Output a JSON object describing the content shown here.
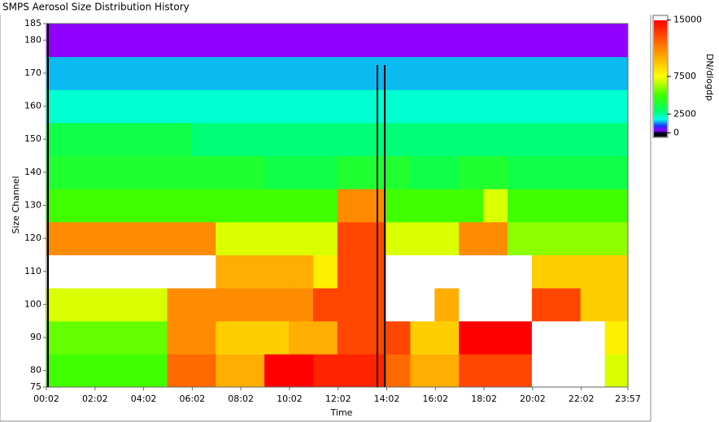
{
  "chart_data": {
    "type": "heatmap",
    "title": "SMPS Aerosol Size Distribution History",
    "x_label": "Time",
    "y_label": "Size Channel",
    "colorbar_label": "DN/dlogdp",
    "x": [
      0.5,
      1.5,
      2.5,
      3.5,
      4.5,
      5.5,
      6.5,
      7.5,
      8.5,
      9.5,
      10.5,
      11.5,
      12.5,
      13.5,
      14.5,
      15.5,
      16.5,
      17.5,
      18.5,
      19.5,
      20.5,
      21.5,
      22.5,
      23.5
    ],
    "y": [
      80,
      90,
      100,
      110,
      120,
      130,
      140,
      150,
      160,
      170,
      180
    ],
    "z": [
      [
        5000,
        5000,
        5000,
        5000,
        5000,
        12000,
        12000,
        10000,
        10000,
        15000,
        15000,
        14000,
        14000,
        14000,
        12000,
        10000,
        10000,
        13000,
        13000,
        13000,
        16000,
        16000,
        16000,
        7000
      ],
      [
        5500,
        5500,
        5500,
        5500,
        5500,
        11000,
        11000,
        9000,
        9000,
        9000,
        10000,
        10000,
        13000,
        13000,
        13000,
        9000,
        9000,
        15000,
        15000,
        15000,
        16000,
        16000,
        16000,
        8000
      ],
      [
        7000,
        7000,
        7000,
        7000,
        7000,
        11000,
        11000,
        11000,
        11000,
        11000,
        11000,
        13000,
        13000,
        13000,
        17000,
        17000,
        10000,
        17000,
        17000,
        17000,
        13000,
        13000,
        9000,
        9000
      ],
      [
        16000,
        16000,
        16000,
        16000,
        16000,
        16000,
        16000,
        10000,
        10000,
        10000,
        10000,
        8000,
        13000,
        13000,
        17000,
        17000,
        17000,
        17000,
        17000,
        17000,
        9000,
        9000,
        9000,
        9000
      ],
      [
        11000,
        11000,
        11000,
        11000,
        11000,
        11000,
        11000,
        7000,
        7000,
        7000,
        7000,
        7000,
        13000,
        13000,
        7000,
        7000,
        7000,
        11000,
        11000,
        6000,
        6000,
        6000,
        6000,
        6000
      ],
      [
        5000,
        5000,
        5000,
        5000,
        5000,
        5000,
        5000,
        5000,
        5000,
        5000,
        5000,
        5000,
        11000,
        11000,
        5000,
        5000,
        5000,
        5000,
        7000,
        5000,
        5000,
        5000,
        5000,
        5000
      ],
      [
        4000,
        4000,
        4000,
        4000,
        4000,
        4000,
        4000,
        4000,
        4000,
        3500,
        3500,
        3500,
        4000,
        4000,
        4000,
        3500,
        3500,
        4000,
        4000,
        3500,
        3500,
        3500,
        3500,
        3500
      ],
      [
        3500,
        3500,
        3500,
        3500,
        3500,
        3500,
        2800,
        2800,
        2800,
        2800,
        2800,
        2800,
        2800,
        2800,
        2800,
        2800,
        2800,
        2800,
        2800,
        2800,
        2800,
        2800,
        2800,
        2800
      ],
      [
        2000,
        2000,
        2000,
        2000,
        2000,
        2000,
        2000,
        2000,
        2000,
        2000,
        2000,
        2000,
        2000,
        2000,
        2000,
        2000,
        2000,
        2000,
        2000,
        2000,
        2000,
        2000,
        2000,
        2000
      ],
      [
        1500,
        1500,
        1500,
        1500,
        1500,
        1500,
        1500,
        1500,
        1500,
        1500,
        1500,
        1500,
        1500,
        1500,
        1500,
        1500,
        1500,
        1500,
        1500,
        1500,
        1500,
        1500,
        1500,
        1500
      ],
      [
        300,
        300,
        300,
        300,
        300,
        300,
        300,
        300,
        300,
        300,
        300,
        300,
        300,
        300,
        300,
        300,
        300,
        300,
        300,
        300,
        300,
        300,
        300,
        300
      ]
    ],
    "xlim": [
      0.033,
      23.95
    ],
    "xticks": [
      {
        "value": 0.033,
        "label": "00:02"
      },
      {
        "value": 2.033,
        "label": "02:02"
      },
      {
        "value": 4.033,
        "label": "04:02"
      },
      {
        "value": 6.033,
        "label": "06:02"
      },
      {
        "value": 8.033,
        "label": "08:02"
      },
      {
        "value": 10.033,
        "label": "10:02"
      },
      {
        "value": 12.033,
        "label": "12:02"
      },
      {
        "value": 14.033,
        "label": "14:02"
      },
      {
        "value": 16.033,
        "label": "16:02"
      },
      {
        "value": 18.033,
        "label": "18:02"
      },
      {
        "value": 20.033,
        "label": "20:02"
      },
      {
        "value": 22.033,
        "label": "22:02"
      },
      {
        "value": 23.95,
        "label": "23:57"
      }
    ],
    "ylim": [
      75,
      185
    ],
    "yticks": [
      75,
      80,
      90,
      100,
      110,
      120,
      130,
      140,
      150,
      160,
      170,
      180,
      185
    ],
    "zlim": [
      -500,
      15500
    ],
    "zticks": [
      0,
      2500,
      7500,
      15000
    ],
    "colorscale": [
      [
        -500,
        "#000000"
      ],
      [
        0,
        "#000030"
      ],
      [
        300,
        "#9000ff"
      ],
      [
        900,
        "#2030ff"
      ],
      [
        1800,
        "#00ffe8"
      ],
      [
        3000,
        "#00ff60"
      ],
      [
        5000,
        "#40ff00"
      ],
      [
        7500,
        "#ffff00"
      ],
      [
        11000,
        "#ff8c00"
      ],
      [
        15000,
        "#ff0000"
      ]
    ],
    "above_color": "#ffffff"
  }
}
